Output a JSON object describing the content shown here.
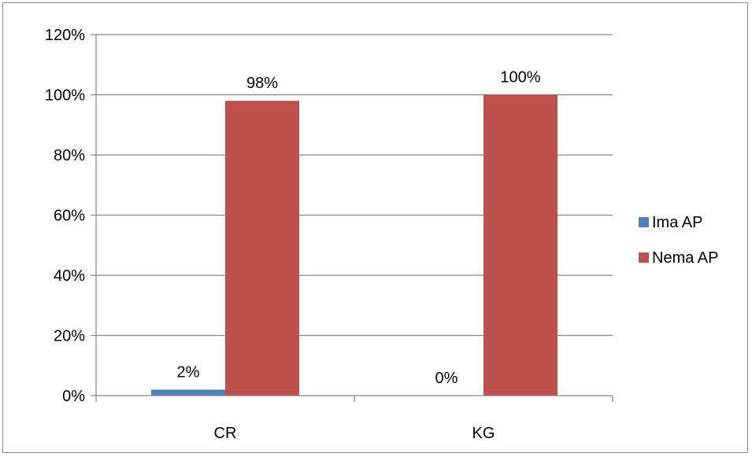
{
  "chart_data": {
    "type": "bar",
    "categories": [
      "CR",
      "KG"
    ],
    "series": [
      {
        "name": "Ima AP",
        "values": [
          2,
          0
        ],
        "labels": [
          "2%",
          "0%"
        ],
        "color": "#4f81bd"
      },
      {
        "name": "Nema AP",
        "values": [
          98,
          100
        ],
        "labels": [
          "98%",
          "100%"
        ],
        "color": "#c0504d"
      }
    ],
    "title": "",
    "xlabel": "",
    "ylabel": "",
    "ylim": [
      0,
      120
    ],
    "yticks": [
      0,
      20,
      40,
      60,
      80,
      100,
      120
    ],
    "ytick_labels": [
      "0%",
      "20%",
      "40%",
      "60%",
      "80%",
      "100%",
      "120%"
    ],
    "grid": true,
    "legend_position": "right"
  }
}
